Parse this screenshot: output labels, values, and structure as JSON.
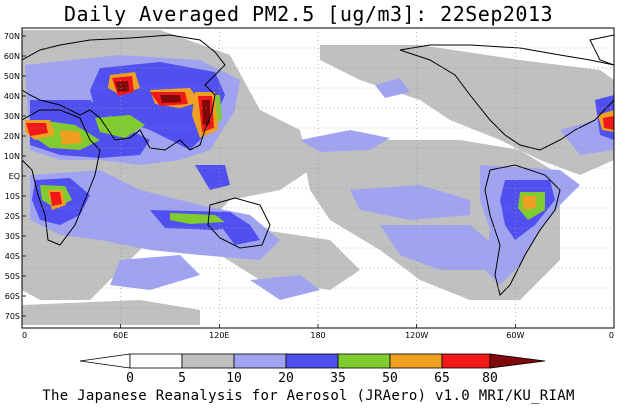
{
  "title": "Daily Averaged PM2.5 [ug/m3]: 22Sep2013",
  "footer": "The Japanese Reanalysis for Aerosol (JRAero) v1.0 MRI/KU_RIAM",
  "map": {
    "projection": "plate-carree",
    "lon_range": [
      0,
      360
    ],
    "lat_range": [
      -75,
      75
    ],
    "lon_ticks": [
      {
        "lon": 0,
        "label": "0"
      },
      {
        "lon": 60,
        "label": "60E"
      },
      {
        "lon": 120,
        "label": "120E"
      },
      {
        "lon": 180,
        "label": "180"
      },
      {
        "lon": 240,
        "label": "120W"
      },
      {
        "lon": 300,
        "label": "60W"
      },
      {
        "lon": 360,
        "label": "0"
      }
    ],
    "lat_ticks": [
      {
        "lat": 70,
        "label": "70N"
      },
      {
        "lat": 60,
        "label": "60N"
      },
      {
        "lat": 50,
        "label": "50N"
      },
      {
        "lat": 40,
        "label": "40N"
      },
      {
        "lat": 30,
        "label": "30N"
      },
      {
        "lat": 20,
        "label": "20N"
      },
      {
        "lat": 10,
        "label": "10N"
      },
      {
        "lat": 0,
        "label": "EQ"
      },
      {
        "lat": -10,
        "label": "10S"
      },
      {
        "lat": -20,
        "label": "20S"
      },
      {
        "lat": -30,
        "label": "30S"
      },
      {
        "lat": -40,
        "label": "40S"
      },
      {
        "lat": -50,
        "label": "50S"
      },
      {
        "lat": -60,
        "label": "60S"
      },
      {
        "lat": -70,
        "label": "70S"
      }
    ],
    "grid_lines": "dotted"
  },
  "colorbar": {
    "labels": [
      "0",
      "5",
      "10",
      "20",
      "35",
      "50",
      "65",
      "80"
    ],
    "colors": [
      "#ffffff",
      "#c0c0c0",
      "#a0a4f0",
      "#5050f0",
      "#80cc30",
      "#f0a020",
      "#f01818",
      "#800808"
    ]
  },
  "colors": {
    "land_outline": "#000000",
    "background": "#ffffff"
  }
}
